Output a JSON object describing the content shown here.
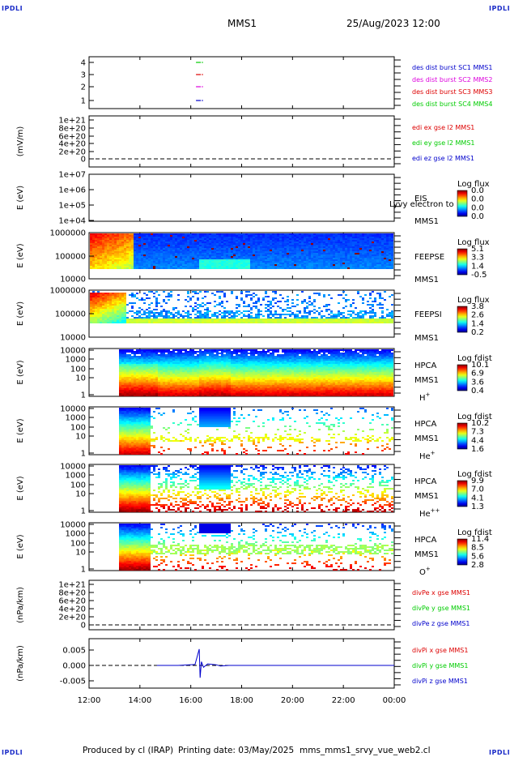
{
  "corner_label": "IPDLI",
  "header": {
    "mission": "MMS1",
    "datetime": "25/Aug/2023 12:00"
  },
  "footer": {
    "produced": "Produced by cl (IRAP)",
    "printing": "Printing date: 03/May/2025",
    "script": "mms_mms1_srvy_vue_web2.cl"
  },
  "time_axis": {
    "start": "12:00",
    "end": "00:00",
    "ticks": [
      "12:00",
      "14:00",
      "16:00",
      "18:00",
      "20:00",
      "22:00",
      "00:00"
    ]
  },
  "colors": {
    "red": "#dd0000",
    "green": "#00cc00",
    "blue": "#0000cc",
    "magenta": "#dd00dd"
  },
  "chart_data": [
    {
      "id": "burst",
      "type": "scatter",
      "ylabel": "",
      "yticks": [
        "4",
        "3",
        "2",
        "1"
      ],
      "legend": [
        {
          "text": "des dist burst SC1 MMS1",
          "color": "#0000cc"
        },
        {
          "text": "des dist burst SC2 MMS2",
          "color": "#dd00dd"
        },
        {
          "text": "des dist burst SC3 MMS3",
          "color": "#dd0000"
        },
        {
          "text": "des dist burst SC4 MMS4",
          "color": "#00cc00"
        }
      ],
      "series": [
        {
          "name": "des dist burst SC1 MMS1",
          "y": 1,
          "x": [
            "16:18",
            "16:26"
          ],
          "color": "#0000cc"
        },
        {
          "name": "des dist burst SC2 MMS2",
          "y": 2,
          "x": [
            "16:18",
            "16:26"
          ],
          "color": "#dd00dd"
        },
        {
          "name": "des dist burst SC3 MMS3",
          "y": 3,
          "x": [
            "16:18",
            "16:26"
          ],
          "color": "#dd0000"
        },
        {
          "name": "des dist burst SC4 MMS4",
          "y": 4,
          "x": [
            "16:18",
            "16:26"
          ],
          "color": "#00cc00"
        }
      ]
    },
    {
      "id": "edi",
      "type": "line",
      "ylabel": "(mV/m)",
      "yticks": [
        "1e+21",
        "8e+20",
        "6e+20",
        "4e+20",
        "2e+20",
        "0"
      ],
      "legend": [
        {
          "text": "edi ex gse l2 MMS1",
          "color": "#dd0000"
        },
        {
          "text": "edi ey gse l2 MMS1",
          "color": "#00cc00"
        },
        {
          "text": "edi ez gse l2 MMS1",
          "color": "#0000cc"
        }
      ]
    },
    {
      "id": "eis",
      "type": "heatmap",
      "ylabel": "E (eV)",
      "yticks": [
        "1e+07",
        "1e+06",
        "1e+05",
        "1e+04"
      ],
      "labels": [
        "EIS",
        "MMS1"
      ],
      "overlay": "Lyvy electron to",
      "cbar": {
        "title": "Log flux",
        "ticks": [
          "0.0",
          "0.0",
          "0.0",
          "0.0"
        ]
      }
    },
    {
      "id": "feepse",
      "type": "heatmap",
      "ylabel": "E (eV)",
      "yticks": [
        "1000000",
        "100000",
        "10000"
      ],
      "labels": [
        "FEEPSE",
        "MMS1"
      ],
      "cbar": {
        "title": "Log flux",
        "ticks": [
          "5.1",
          "3.3",
          "1.4",
          "-0.5"
        ]
      }
    },
    {
      "id": "feepsi",
      "type": "heatmap",
      "ylabel": "E (eV)",
      "yticks": [
        "1000000",
        "100000",
        "10000"
      ],
      "labels": [
        "FEEPSI",
        "MMS1"
      ],
      "cbar": {
        "title": "Log flux",
        "ticks": [
          "3.8",
          "2.6",
          "1.4",
          "0.2"
        ]
      }
    },
    {
      "id": "hpca_h",
      "type": "heatmap",
      "ylabel": "E (eV)",
      "yticks": [
        "10000",
        "1000",
        "100",
        "10",
        "1"
      ],
      "labels": [
        "HPCA",
        "MMS1"
      ],
      "species": "H",
      "charge": "+",
      "cbar": {
        "title": "Log fdist",
        "ticks": [
          "10.1",
          "6.9",
          "3.6",
          "0.4"
        ]
      }
    },
    {
      "id": "hpca_he",
      "type": "heatmap",
      "ylabel": "E (eV)",
      "yticks": [
        "10000",
        "1000",
        "100",
        "10",
        "1"
      ],
      "labels": [
        "HPCA",
        "MMS1"
      ],
      "species": "He",
      "charge": "+",
      "cbar": {
        "title": "Log fdist",
        "ticks": [
          "10.2",
          "7.3",
          "4.4",
          "1.6"
        ]
      }
    },
    {
      "id": "hpca_hepp",
      "type": "heatmap",
      "ylabel": "E (eV)",
      "yticks": [
        "10000",
        "1000",
        "100",
        "10",
        "1"
      ],
      "labels": [
        "HPCA",
        "MMS1"
      ],
      "species": "He",
      "charge": "++",
      "cbar": {
        "title": "Log fdist",
        "ticks": [
          "9.9",
          "7.0",
          "4.1",
          "1.3"
        ]
      }
    },
    {
      "id": "hpca_o",
      "type": "heatmap",
      "ylabel": "E (eV)",
      "yticks": [
        "10000",
        "1000",
        "100",
        "10",
        "1"
      ],
      "labels": [
        "HPCA",
        "MMS1"
      ],
      "species": "O",
      "charge": "+",
      "cbar": {
        "title": "Log fdist",
        "ticks": [
          "11.4",
          "8.5",
          "5.6",
          "2.8"
        ]
      }
    },
    {
      "id": "divpe",
      "type": "line",
      "ylabel": "(nPa/km)",
      "yticks": [
        "1e+21",
        "8e+20",
        "6e+20",
        "4e+20",
        "2e+20",
        "0"
      ],
      "legend": [
        {
          "text": "divPe x gse MMS1",
          "color": "#dd0000"
        },
        {
          "text": "divPe y gse MMS1",
          "color": "#00cc00"
        },
        {
          "text": "divPe z gse MMS1",
          "color": "#0000cc"
        }
      ]
    },
    {
      "id": "divpi",
      "type": "line",
      "ylabel": "(nPa/km)",
      "yticks": [
        "0.005",
        "0.000",
        "-0.005"
      ],
      "ylim": [
        -0.0075,
        0.0075
      ],
      "legend": [
        {
          "text": "divPi x gse MMS1",
          "color": "#dd0000"
        },
        {
          "text": "divPi y gse MMS1",
          "color": "#00cc00"
        },
        {
          "text": "divPi z gse MMS1",
          "color": "#0000cc"
        }
      ],
      "series": [
        {
          "name": "divPi z gse MMS1",
          "color": "#0000cc",
          "x": [
            "14:40",
            "15:30",
            "16:10",
            "16:20",
            "16:22",
            "16:25",
            "16:30",
            "16:40",
            "17:00",
            "17:10",
            "17:30",
            "19:00",
            "21:00",
            "00:00"
          ],
          "y": [
            0.0,
            0.0,
            0.0003,
            0.0053,
            -0.004,
            0.0012,
            -0.0006,
            0.0005,
            0.0002,
            -0.0002,
            0.0,
            0.0,
            0.0,
            0.0
          ]
        }
      ]
    }
  ]
}
